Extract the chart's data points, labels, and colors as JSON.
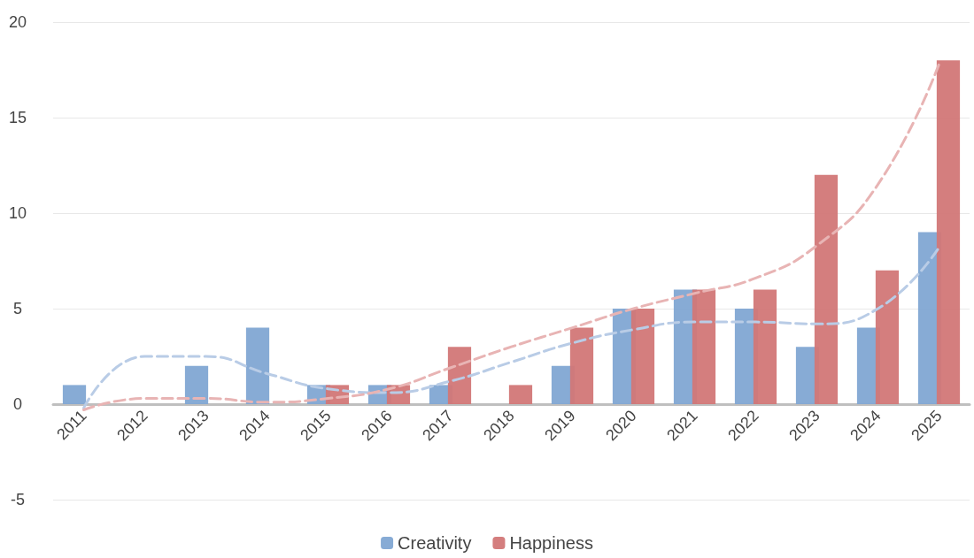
{
  "chart_data": {
    "type": "bar",
    "categories": [
      "2011",
      "2012",
      "2013",
      "2014",
      "2015",
      "2016",
      "2017",
      "2018",
      "2019",
      "2020",
      "2021",
      "2022",
      "2023",
      "2024",
      "2025"
    ],
    "series": [
      {
        "name": "Creativity",
        "color": "#81a6d3",
        "values": [
          1,
          0,
          2,
          4,
          1,
          1,
          1,
          0,
          2,
          5,
          6,
          5,
          3,
          4,
          9
        ]
      },
      {
        "name": "Happiness",
        "color": "#d27777",
        "values": [
          0,
          0,
          0,
          0,
          1,
          1,
          3,
          1,
          4,
          5,
          6,
          6,
          12,
          7,
          18
        ]
      },
      {
        "type": "line",
        "color": "#b9cce6",
        "line_style": "dashed",
        "marker": "none",
        "values": [
          -0.2,
          2.5,
          2.5,
          1.6,
          0.8,
          0.6,
          1.2,
          2.2,
          3.2,
          3.9,
          4.3,
          4.3,
          4.2,
          5.0,
          8.2
        ]
      },
      {
        "type": "line",
        "color": "#e8b4b4",
        "line_style": "dashed",
        "marker": "none",
        "values": [
          -0.3,
          0.3,
          0.3,
          0.1,
          0.3,
          0.8,
          1.9,
          3.0,
          4.0,
          5.0,
          5.8,
          6.6,
          8.3,
          11.5,
          17.8
        ]
      }
    ],
    "ylim": [
      -5,
      20
    ],
    "yticks": [
      -5,
      0,
      5,
      10,
      15,
      20
    ],
    "grid": "y",
    "legend": "bottom"
  }
}
